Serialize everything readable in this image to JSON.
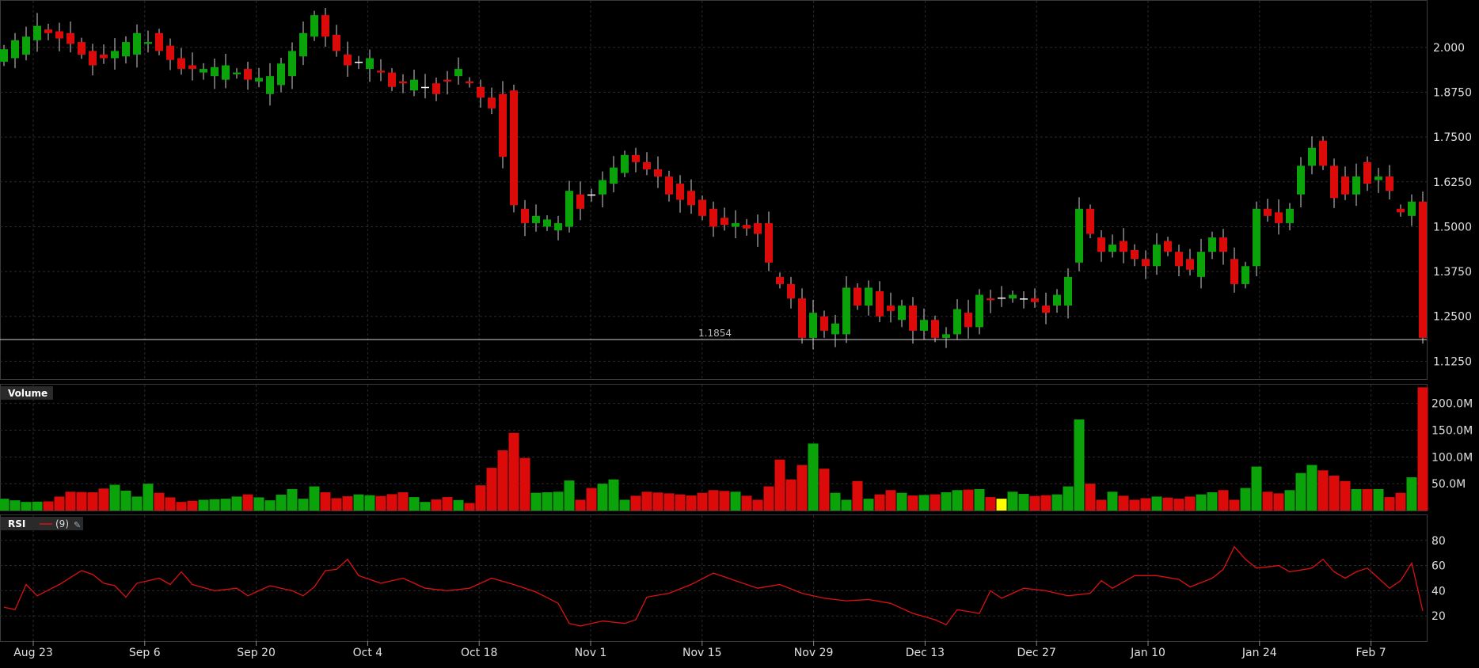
{
  "chart_data": [
    {
      "type": "candlestick",
      "y_axis": {
        "ticks": [
          "2.000",
          "1.8750",
          "1.7500",
          "1.6250",
          "1.5000",
          "1.3750",
          "1.2500",
          "1.1250"
        ],
        "ylim": [
          1.075,
          2.13
        ],
        "side": "right",
        "grid": true
      },
      "reference_line": {
        "value": 1.1854,
        "label": "1.1854"
      },
      "x_axis": {
        "tick_labels": [
          "Aug 23",
          "Sep 6",
          "Sep 20",
          "Oct 4",
          "Oct 18",
          "Nov 1",
          "Nov 15",
          "Nov 29",
          "Dec 13",
          "Dec 27",
          "Jan 10",
          "Jan 24",
          "Feb 7"
        ],
        "grid": true
      },
      "colors": {
        "up": "#0aa30a",
        "down": "#dd0a0a",
        "doji": "#ffffff"
      },
      "anchors": [
        [
          0,
          1.96,
          1.995
        ],
        [
          1,
          1.97,
          2.02
        ],
        [
          2,
          1.98,
          2.03
        ],
        [
          3,
          2.02,
          2.06
        ],
        [
          4,
          2.05,
          2.04
        ],
        [
          6,
          2.04,
          2.01
        ],
        [
          8,
          1.99,
          1.95
        ],
        [
          10,
          1.97,
          1.99
        ],
        [
          12,
          1.98,
          2.04
        ],
        [
          14,
          2.04,
          1.99
        ],
        [
          16,
          1.97,
          1.94
        ],
        [
          18,
          1.93,
          1.94
        ],
        [
          20,
          1.91,
          1.95
        ],
        [
          22,
          1.94,
          1.91
        ],
        [
          24,
          1.87,
          1.92
        ],
        [
          26,
          1.92,
          1.99
        ],
        [
          28,
          2.03,
          2.09
        ],
        [
          29,
          2.09,
          2.03
        ],
        [
          31,
          1.98,
          1.95
        ],
        [
          33,
          1.94,
          1.97
        ],
        [
          35,
          1.93,
          1.89
        ],
        [
          37,
          1.88,
          1.91
        ],
        [
          39,
          1.9,
          1.87
        ],
        [
          41,
          1.92,
          1.94
        ],
        [
          43,
          1.89,
          1.86
        ],
        [
          44,
          1.86,
          1.83
        ],
        [
          46,
          1.88,
          1.56
        ],
        [
          47,
          1.55,
          1.51
        ],
        [
          48,
          1.51,
          1.53
        ],
        [
          50,
          1.49,
          1.51
        ],
        [
          51,
          1.5,
          1.6
        ],
        [
          52,
          1.59,
          1.55
        ],
        [
          54,
          1.59,
          1.63
        ],
        [
          56,
          1.65,
          1.7
        ],
        [
          57,
          1.7,
          1.68
        ],
        [
          59,
          1.66,
          1.64
        ],
        [
          60,
          1.64,
          1.59
        ],
        [
          62,
          1.6,
          1.56
        ],
        [
          64,
          1.55,
          1.5
        ],
        [
          66,
          1.5,
          1.51
        ],
        [
          68,
          1.51,
          1.48
        ],
        [
          69,
          1.51,
          1.4
        ],
        [
          70,
          1.36,
          1.34
        ],
        [
          71,
          1.34,
          1.3
        ],
        [
          72,
          1.3,
          1.19
        ],
        [
          73,
          1.19,
          1.26
        ],
        [
          74,
          1.25,
          1.21
        ],
        [
          75,
          1.2,
          1.23
        ],
        [
          76,
          1.2,
          1.33
        ],
        [
          77,
          1.33,
          1.28
        ],
        [
          78,
          1.28,
          1.33
        ],
        [
          79,
          1.32,
          1.25
        ],
        [
          81,
          1.24,
          1.28
        ],
        [
          82,
          1.28,
          1.21
        ],
        [
          83,
          1.21,
          1.24
        ],
        [
          84,
          1.24,
          1.19
        ],
        [
          85,
          1.19,
          1.2
        ],
        [
          86,
          1.2,
          1.27
        ],
        [
          87,
          1.26,
          1.22
        ],
        [
          88,
          1.22,
          1.31
        ],
        [
          89,
          1.3,
          1.295
        ],
        [
          91,
          1.3,
          1.31
        ],
        [
          93,
          1.3,
          1.29
        ],
        [
          94,
          1.28,
          1.26
        ],
        [
          96,
          1.28,
          1.36
        ],
        [
          97,
          1.4,
          1.55
        ],
        [
          98,
          1.55,
          1.48
        ],
        [
          99,
          1.47,
          1.43
        ],
        [
          100,
          1.43,
          1.45
        ],
        [
          101,
          1.46,
          1.43
        ],
        [
          103,
          1.41,
          1.39
        ],
        [
          104,
          1.39,
          1.45
        ],
        [
          105,
          1.46,
          1.43
        ],
        [
          106,
          1.43,
          1.39
        ],
        [
          107,
          1.41,
          1.38
        ],
        [
          108,
          1.36,
          1.43
        ],
        [
          109,
          1.43,
          1.47
        ],
        [
          110,
          1.47,
          1.43
        ],
        [
          111,
          1.41,
          1.34
        ],
        [
          112,
          1.34,
          1.39
        ],
        [
          113,
          1.39,
          1.55
        ],
        [
          114,
          1.55,
          1.53
        ],
        [
          115,
          1.54,
          1.51
        ],
        [
          116,
          1.51,
          1.55
        ],
        [
          117,
          1.59,
          1.67
        ],
        [
          118,
          1.67,
          1.72
        ],
        [
          119,
          1.74,
          1.67
        ],
        [
          120,
          1.67,
          1.58
        ],
        [
          121,
          1.64,
          1.59
        ],
        [
          122,
          1.59,
          1.64
        ],
        [
          123,
          1.68,
          1.62
        ],
        [
          124,
          1.63,
          1.64
        ],
        [
          125,
          1.64,
          1.6
        ],
        [
          126,
          1.55,
          1.54
        ],
        [
          127,
          1.53,
          1.57
        ],
        [
          128,
          1.57,
          1.19
        ]
      ]
    },
    {
      "type": "bar",
      "title": "Volume",
      "y_axis": {
        "ticks": [
          "200.0M",
          "150.0M",
          "100.0M",
          "50.0M"
        ],
        "tick_values": [
          200,
          150,
          100,
          50
        ],
        "ylim": [
          0,
          235
        ],
        "unit": "M"
      },
      "anchors": [
        [
          0,
          22
        ],
        [
          2,
          16
        ],
        [
          4,
          17
        ],
        [
          6,
          35
        ],
        [
          8,
          34
        ],
        [
          10,
          48
        ],
        [
          12,
          26
        ],
        [
          13,
          50
        ],
        [
          14,
          33
        ],
        [
          16,
          16
        ],
        [
          18,
          20
        ],
        [
          20,
          22
        ],
        [
          22,
          30
        ],
        [
          24,
          19
        ],
        [
          26,
          40
        ],
        [
          27,
          22
        ],
        [
          28,
          45
        ],
        [
          30,
          23
        ],
        [
          32,
          30
        ],
        [
          34,
          27
        ],
        [
          36,
          34
        ],
        [
          38,
          16
        ],
        [
          40,
          25
        ],
        [
          42,
          14
        ],
        [
          43,
          47
        ],
        [
          46,
          145
        ],
        [
          47,
          98
        ],
        [
          48,
          33
        ],
        [
          50,
          35
        ],
        [
          51,
          56
        ],
        [
          52,
          20
        ],
        [
          53,
          42
        ],
        [
          55,
          58
        ],
        [
          56,
          20
        ],
        [
          58,
          35
        ],
        [
          60,
          32
        ],
        [
          62,
          28
        ],
        [
          64,
          38
        ],
        [
          66,
          35
        ],
        [
          68,
          20
        ],
        [
          69,
          45
        ],
        [
          70,
          95
        ],
        [
          71,
          58
        ],
        [
          72,
          85
        ],
        [
          73,
          125
        ],
        [
          74,
          78
        ],
        [
          75,
          33
        ],
        [
          76,
          20
        ],
        [
          77,
          55
        ],
        [
          78,
          22
        ],
        [
          80,
          38
        ],
        [
          82,
          28
        ],
        [
          84,
          30
        ],
        [
          86,
          38
        ],
        [
          88,
          40
        ],
        [
          89,
          25
        ],
        [
          90,
          22
        ],
        [
          91,
          35
        ],
        [
          93,
          27
        ],
        [
          95,
          30
        ],
        [
          96,
          45
        ],
        [
          97,
          170
        ],
        [
          98,
          50
        ],
        [
          99,
          20
        ],
        [
          100,
          35
        ],
        [
          102,
          20
        ],
        [
          104,
          26
        ],
        [
          106,
          22
        ],
        [
          108,
          30
        ],
        [
          110,
          38
        ],
        [
          111,
          20
        ],
        [
          112,
          42
        ],
        [
          113,
          82
        ],
        [
          114,
          35
        ],
        [
          115,
          32
        ],
        [
          116,
          38
        ],
        [
          117,
          70
        ],
        [
          118,
          85
        ],
        [
          119,
          75
        ],
        [
          120,
          65
        ],
        [
          121,
          55
        ],
        [
          122,
          40
        ],
        [
          124,
          40
        ],
        [
          125,
          25
        ],
        [
          126,
          33
        ],
        [
          127,
          62
        ],
        [
          128,
          230
        ]
      ],
      "highlight_index": 90,
      "colors": {
        "up": "#0aa30a",
        "down": "#dd0a0a",
        "highlight": "#ffff00"
      }
    },
    {
      "type": "line",
      "title": "RSI",
      "legend_text": "(9)",
      "y_axis": {
        "ticks": [
          "80",
          "60",
          "40",
          "20"
        ],
        "tick_values": [
          80,
          60,
          40,
          20
        ],
        "ylim": [
          0,
          100
        ]
      },
      "anchors": [
        [
          0,
          27
        ],
        [
          1,
          25
        ],
        [
          2,
          45
        ],
        [
          3,
          36
        ],
        [
          5,
          45
        ],
        [
          7,
          56
        ],
        [
          8,
          53
        ],
        [
          9,
          46
        ],
        [
          10,
          44
        ],
        [
          11,
          35
        ],
        [
          12,
          46
        ],
        [
          14,
          50
        ],
        [
          15,
          45
        ],
        [
          16,
          55
        ],
        [
          17,
          45
        ],
        [
          19,
          40
        ],
        [
          21,
          42
        ],
        [
          22,
          36
        ],
        [
          24,
          44
        ],
        [
          26,
          40
        ],
        [
          27,
          36
        ],
        [
          28,
          43
        ],
        [
          29,
          56
        ],
        [
          30,
          57
        ],
        [
          31,
          65
        ],
        [
          32,
          52
        ],
        [
          34,
          46
        ],
        [
          36,
          50
        ],
        [
          38,
          42
        ],
        [
          40,
          40
        ],
        [
          42,
          42
        ],
        [
          44,
          50
        ],
        [
          46,
          45
        ],
        [
          48,
          39
        ],
        [
          50,
          30
        ],
        [
          51,
          14
        ],
        [
          52,
          12
        ],
        [
          54,
          16
        ],
        [
          56,
          14
        ],
        [
          57,
          17
        ],
        [
          58,
          35
        ],
        [
          60,
          38
        ],
        [
          62,
          45
        ],
        [
          64,
          54
        ],
        [
          66,
          48
        ],
        [
          68,
          42
        ],
        [
          70,
          45
        ],
        [
          72,
          38
        ],
        [
          74,
          34
        ],
        [
          76,
          32
        ],
        [
          78,
          33
        ],
        [
          80,
          30
        ],
        [
          82,
          22
        ],
        [
          84,
          17
        ],
        [
          85,
          13
        ],
        [
          86,
          25
        ],
        [
          88,
          22
        ],
        [
          89,
          40
        ],
        [
          90,
          34
        ],
        [
          92,
          42
        ],
        [
          94,
          40
        ],
        [
          96,
          36
        ],
        [
          98,
          38
        ],
        [
          99,
          48
        ],
        [
          100,
          42
        ],
        [
          102,
          52
        ],
        [
          104,
          52
        ],
        [
          106,
          49
        ],
        [
          107,
          43
        ],
        [
          109,
          50
        ],
        [
          110,
          57
        ],
        [
          111,
          75
        ],
        [
          112,
          65
        ],
        [
          113,
          58
        ],
        [
          115,
          60
        ],
        [
          116,
          55
        ],
        [
          118,
          58
        ],
        [
          119,
          65
        ],
        [
          120,
          55
        ],
        [
          121,
          50
        ],
        [
          122,
          55
        ],
        [
          123,
          58
        ],
        [
          124,
          50
        ],
        [
          125,
          42
        ],
        [
          126,
          48
        ],
        [
          127,
          62
        ],
        [
          128,
          24
        ]
      ],
      "color": "#dd1111"
    }
  ]
}
